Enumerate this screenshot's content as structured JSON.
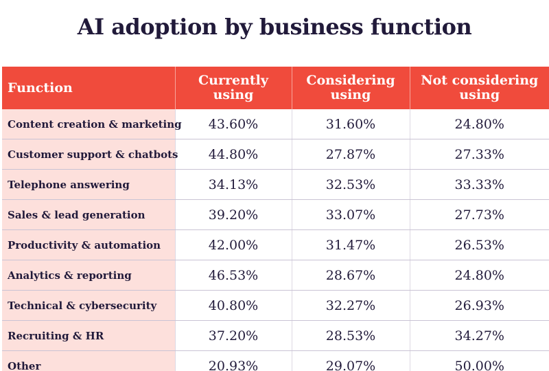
{
  "title": "AI adoption by business function",
  "chart_data": {
    "type": "table",
    "title": "AI adoption by business function",
    "columns": [
      "Function",
      "Currently using",
      "Considering using",
      "Not considering using"
    ],
    "rows": [
      {
        "function": "Content creation & marketing",
        "currently": "43.60%",
        "considering": "31.60%",
        "not_considering": "24.80%"
      },
      {
        "function": "Customer support & chatbots",
        "currently": "44.80%",
        "considering": "27.87%",
        "not_considering": "27.33%"
      },
      {
        "function": "Telephone answering",
        "currently": "34.13%",
        "considering": "32.53%",
        "not_considering": "33.33%"
      },
      {
        "function": "Sales & lead generation",
        "currently": "39.20%",
        "considering": "33.07%",
        "not_considering": "27.73%"
      },
      {
        "function": "Productivity & automation",
        "currently": "42.00%",
        "considering": "31.47%",
        "not_considering": "26.53%"
      },
      {
        "function": "Analytics & reporting",
        "currently": "46.53%",
        "considering": "28.67%",
        "not_considering": "24.80%"
      },
      {
        "function": "Technical & cybersecurity",
        "currently": "40.80%",
        "considering": "32.27%",
        "not_considering": "26.93%"
      },
      {
        "function": "Recruiting & HR",
        "currently": "37.20%",
        "considering": "28.53%",
        "not_considering": "34.27%"
      },
      {
        "function": "Other",
        "currently": "20.93%",
        "considering": "29.07%",
        "not_considering": "50.00%"
      }
    ]
  },
  "colors": {
    "header_bg": "#f04b3c",
    "function_col_bg": "#fde0dc",
    "title_text": "#211a3a"
  }
}
